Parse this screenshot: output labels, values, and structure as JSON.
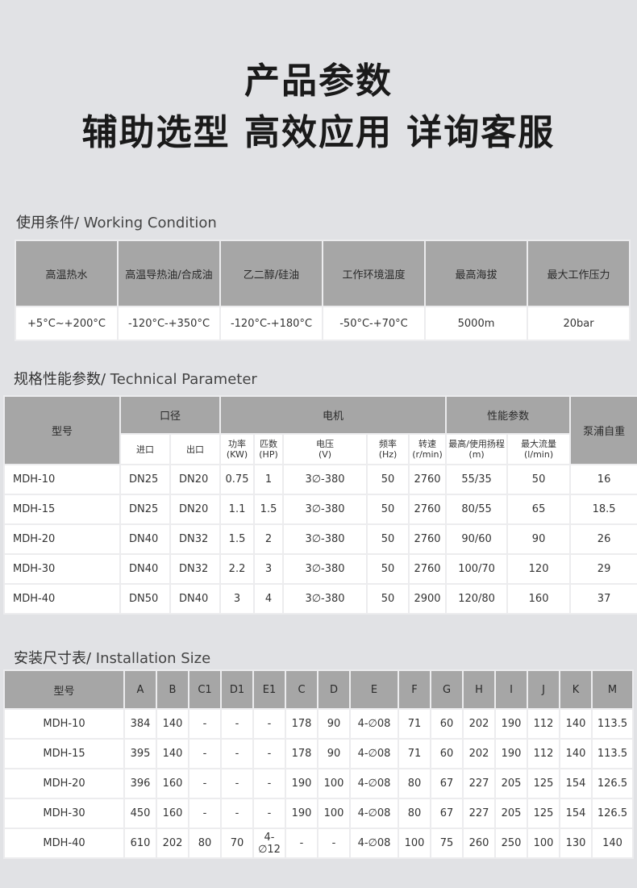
{
  "title_line1": "产品参数",
  "title_line2": "辅助选型 高效应用 详询客服",
  "working": {
    "title_cn": "使用条件/",
    "title_en": " Working Condition",
    "headers": [
      "高温热水",
      "高温导热油/合成油",
      "乙二醇/硅油",
      "工作环境温度",
      "最高海拔",
      "最大工作压力"
    ],
    "values": [
      "+5°C~+200°C",
      "-120°C-+350°C",
      "-120°C-+180°C",
      "-50°C-+70°C",
      "5000m",
      "20bar"
    ]
  },
  "technical": {
    "title_cn": "规格性能参数/",
    "title_en": " Technical Parameter",
    "group_headers": {
      "model": "型号",
      "bore": "口径",
      "motor": "电机",
      "performance": "性能参数",
      "weight": "泵浦自重"
    },
    "sub_headers": [
      "进口",
      "出口",
      "功率\n(KW)",
      "匹数\n(HP)",
      "电压\n(V)",
      "频率\n(Hz)",
      "转速\n(r/min)",
      "最高/使用扬程\n(m)",
      "最大流量\n(l/min)"
    ],
    "rows": [
      [
        "MDH-10",
        "DN25",
        "DN20",
        "0.75",
        "1",
        "3∅-380",
        "50",
        "2760",
        "55/35",
        "50",
        "16"
      ],
      [
        "MDH-15",
        "DN25",
        "DN20",
        "1.1",
        "1.5",
        "3∅-380",
        "50",
        "2760",
        "80/55",
        "65",
        "18.5"
      ],
      [
        "MDH-20",
        "DN40",
        "DN32",
        "1.5",
        "2",
        "3∅-380",
        "50",
        "2760",
        "90/60",
        "90",
        "26"
      ],
      [
        "MDH-30",
        "DN40",
        "DN32",
        "2.2",
        "3",
        "3∅-380",
        "50",
        "2760",
        "100/70",
        "120",
        "29"
      ],
      [
        "MDH-40",
        "DN50",
        "DN40",
        "3",
        "4",
        "3∅-380",
        "50",
        "2900",
        "120/80",
        "160",
        "37"
      ]
    ]
  },
  "install": {
    "title_cn": "安装尺寸表/",
    "title_en": " Installation Size",
    "headers": [
      "型号",
      "A",
      "B",
      "C1",
      "D1",
      "E1",
      "C",
      "D",
      "E",
      "F",
      "G",
      "H",
      "I",
      "J",
      "K",
      "M"
    ],
    "rows": [
      [
        "MDH-10",
        "384",
        "140",
        "-",
        "-",
        "-",
        "178",
        "90",
        "4-∅08",
        "71",
        "60",
        "202",
        "190",
        "112",
        "140",
        "113.5"
      ],
      [
        "MDH-15",
        "395",
        "140",
        "-",
        "-",
        "-",
        "178",
        "90",
        "4-∅08",
        "71",
        "60",
        "202",
        "190",
        "112",
        "140",
        "113.5"
      ],
      [
        "MDH-20",
        "396",
        "160",
        "-",
        "-",
        "-",
        "190",
        "100",
        "4-∅08",
        "80",
        "67",
        "227",
        "205",
        "125",
        "154",
        "126.5"
      ],
      [
        "MDH-30",
        "450",
        "160",
        "-",
        "-",
        "-",
        "190",
        "100",
        "4-∅08",
        "80",
        "67",
        "227",
        "205",
        "125",
        "154",
        "126.5"
      ],
      [
        "MDH-40",
        "610",
        "202",
        "80",
        "70",
        "4-∅12",
        "-",
        "-",
        "4-∅08",
        "100",
        "75",
        "260",
        "250",
        "100",
        "130",
        "140"
      ]
    ]
  }
}
